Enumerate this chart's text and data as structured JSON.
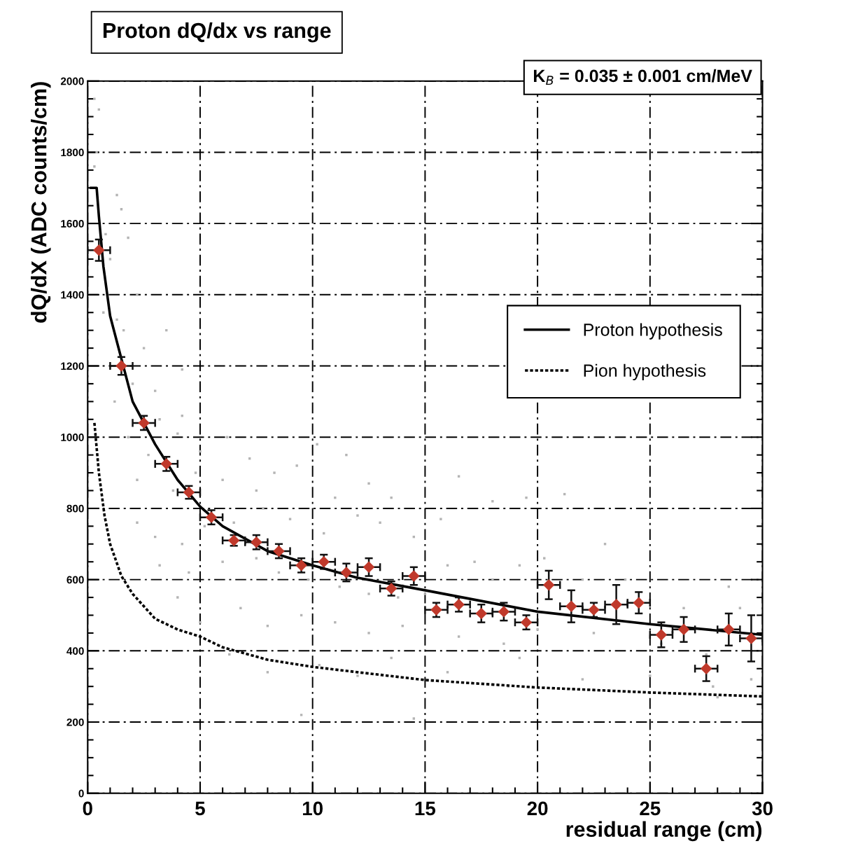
{
  "chart_data": {
    "type": "scatter",
    "title": "Proton dQ/dx vs range",
    "xlabel": "residual range (cm)",
    "ylabel": "dQ/dX (ADC counts/cm)",
    "xlim": [
      0,
      30
    ],
    "xticks": [
      0,
      5,
      10,
      15,
      20,
      25,
      30
    ],
    "ylim": [
      0,
      2000
    ],
    "yticks": [
      0,
      200,
      400,
      600,
      800,
      1000,
      1200,
      1400,
      1600,
      1800,
      2000
    ],
    "grid": true,
    "legend": "right",
    "annotations": [
      "K$_{B}$ = 0.035 ± 0.001 cm/MeV"
    ],
    "series": [
      {
        "color": "#b4b4b4",
        "marker": "square",
        "x": [
          0.3,
          0.5,
          0.4,
          0.3,
          0.8,
          1.3,
          1.0,
          1.5,
          1.8,
          0.7,
          1.3,
          1.6,
          2.2,
          2.0,
          2.5,
          3.0,
          3.5,
          4.2,
          1.2,
          1.8,
          2.7,
          3.2,
          4.0,
          5.0,
          6.2,
          4.2,
          7.2,
          2.2,
          3.8,
          4.8,
          6.0,
          7.5,
          8.3,
          9.3,
          10.2,
          11.5,
          12.5,
          11.0,
          13.5,
          2.2,
          3.0,
          4.2,
          5.2,
          6.5,
          7.8,
          9.0,
          10.5,
          12.0,
          13.0,
          14.5,
          3.2,
          4.5,
          6.0,
          7.5,
          8.5,
          9.8,
          11.2,
          12.5,
          13.8,
          15.0,
          16.0,
          17.2,
          18.0,
          19.2,
          20.3,
          21.2,
          22.0,
          23.0,
          23.9,
          26.5,
          28.5,
          29.0,
          4.0,
          5.0,
          6.8,
          8.0,
          9.5,
          11.0,
          12.5,
          14.0,
          16.5,
          18.5,
          20.0,
          22.5,
          25.5,
          27.5,
          29.5,
          6.3,
          8.0,
          10.3,
          12.0,
          13.5,
          16.0,
          18.7,
          19.2,
          22.0,
          25.0,
          27.8,
          9.5,
          14.5,
          28.0,
          16.5,
          18.0,
          19.5,
          15.7
        ],
        "values": [
          1950,
          1920,
          1800,
          1760,
          1570,
          1680,
          1500,
          1640,
          1560,
          1350,
          1330,
          1300,
          1400,
          1150,
          1250,
          1130,
          1300,
          1190,
          1100,
          1000,
          950,
          1050,
          1010,
          960,
          1000,
          1060,
          940,
          880,
          850,
          900,
          880,
          850,
          900,
          920,
          980,
          950,
          870,
          830,
          830,
          760,
          720,
          700,
          750,
          760,
          800,
          770,
          730,
          780,
          760,
          720,
          640,
          620,
          650,
          660,
          620,
          600,
          580,
          560,
          550,
          560,
          640,
          650,
          600,
          640,
          660,
          840,
          600,
          700,
          600,
          520,
          580,
          520,
          550,
          480,
          520,
          470,
          500,
          480,
          450,
          470,
          440,
          420,
          460,
          450,
          420,
          390,
          320,
          390,
          340,
          360,
          330,
          380,
          340,
          300,
          380,
          320,
          330,
          300,
          220,
          210,
          270,
          890,
          820,
          830,
          770
        ]
      },
      {
        "color": "#c0392b",
        "marker": "diamond",
        "x": [
          0.5,
          1.5,
          2.5,
          3.5,
          4.5,
          5.5,
          6.5,
          7.5,
          8.5,
          9.5,
          10.5,
          11.5,
          12.5,
          13.5,
          14.5,
          15.5,
          16.5,
          17.5,
          18.5,
          19.5,
          20.5,
          21.5,
          22.5,
          23.5,
          24.5,
          25.5,
          26.5,
          27.5,
          28.5,
          29.5
        ],
        "values": [
          1525,
          1200,
          1040,
          925,
          845,
          775,
          710,
          705,
          680,
          640,
          650,
          620,
          635,
          575,
          610,
          515,
          530,
          505,
          510,
          480,
          585,
          525,
          515,
          530,
          535,
          445,
          460,
          350,
          460,
          435
        ],
        "errors": [
          30,
          25,
          20,
          20,
          18,
          20,
          15,
          20,
          20,
          20,
          20,
          25,
          25,
          20,
          25,
          20,
          20,
          25,
          25,
          20,
          40,
          45,
          20,
          55,
          30,
          35,
          35,
          35,
          45,
          65
        ],
        "xerrors": [
          0.5,
          0.5,
          0.5,
          0.5,
          0.5,
          0.5,
          0.5,
          0.5,
          0.5,
          0.5,
          0.5,
          0.5,
          0.5,
          0.5,
          0.5,
          0.5,
          0.5,
          0.5,
          0.5,
          0.5,
          0.5,
          0.5,
          0.5,
          0.5,
          0.5,
          0.5,
          0.5,
          0.5,
          0.5,
          0.5
        ]
      },
      {
        "type": "line",
        "name": "Proton hypothesis",
        "color": "#000000",
        "line_style": "solid",
        "x": [
          0.15,
          0.4,
          0.5,
          0.7,
          1,
          2,
          2.5,
          3,
          4,
          5,
          6,
          8,
          10,
          12,
          15,
          20,
          25,
          30
        ],
        "values": [
          1700,
          1700,
          1620,
          1480,
          1340,
          1100,
          1040,
          980,
          880,
          805,
          750,
          680,
          640,
          605,
          570,
          510,
          475,
          445
        ]
      },
      {
        "type": "line",
        "name": "Pion hypothesis",
        "color": "#000000",
        "line_style": "dotted",
        "x": [
          0.3,
          0.5,
          0.75,
          1,
          1.5,
          2,
          3,
          4,
          5,
          6,
          8,
          10,
          12,
          15,
          20,
          25,
          30
        ],
        "values": [
          1040,
          900,
          780,
          700,
          610,
          560,
          490,
          460,
          440,
          410,
          375,
          355,
          340,
          318,
          297,
          283,
          272
        ]
      }
    ]
  }
}
